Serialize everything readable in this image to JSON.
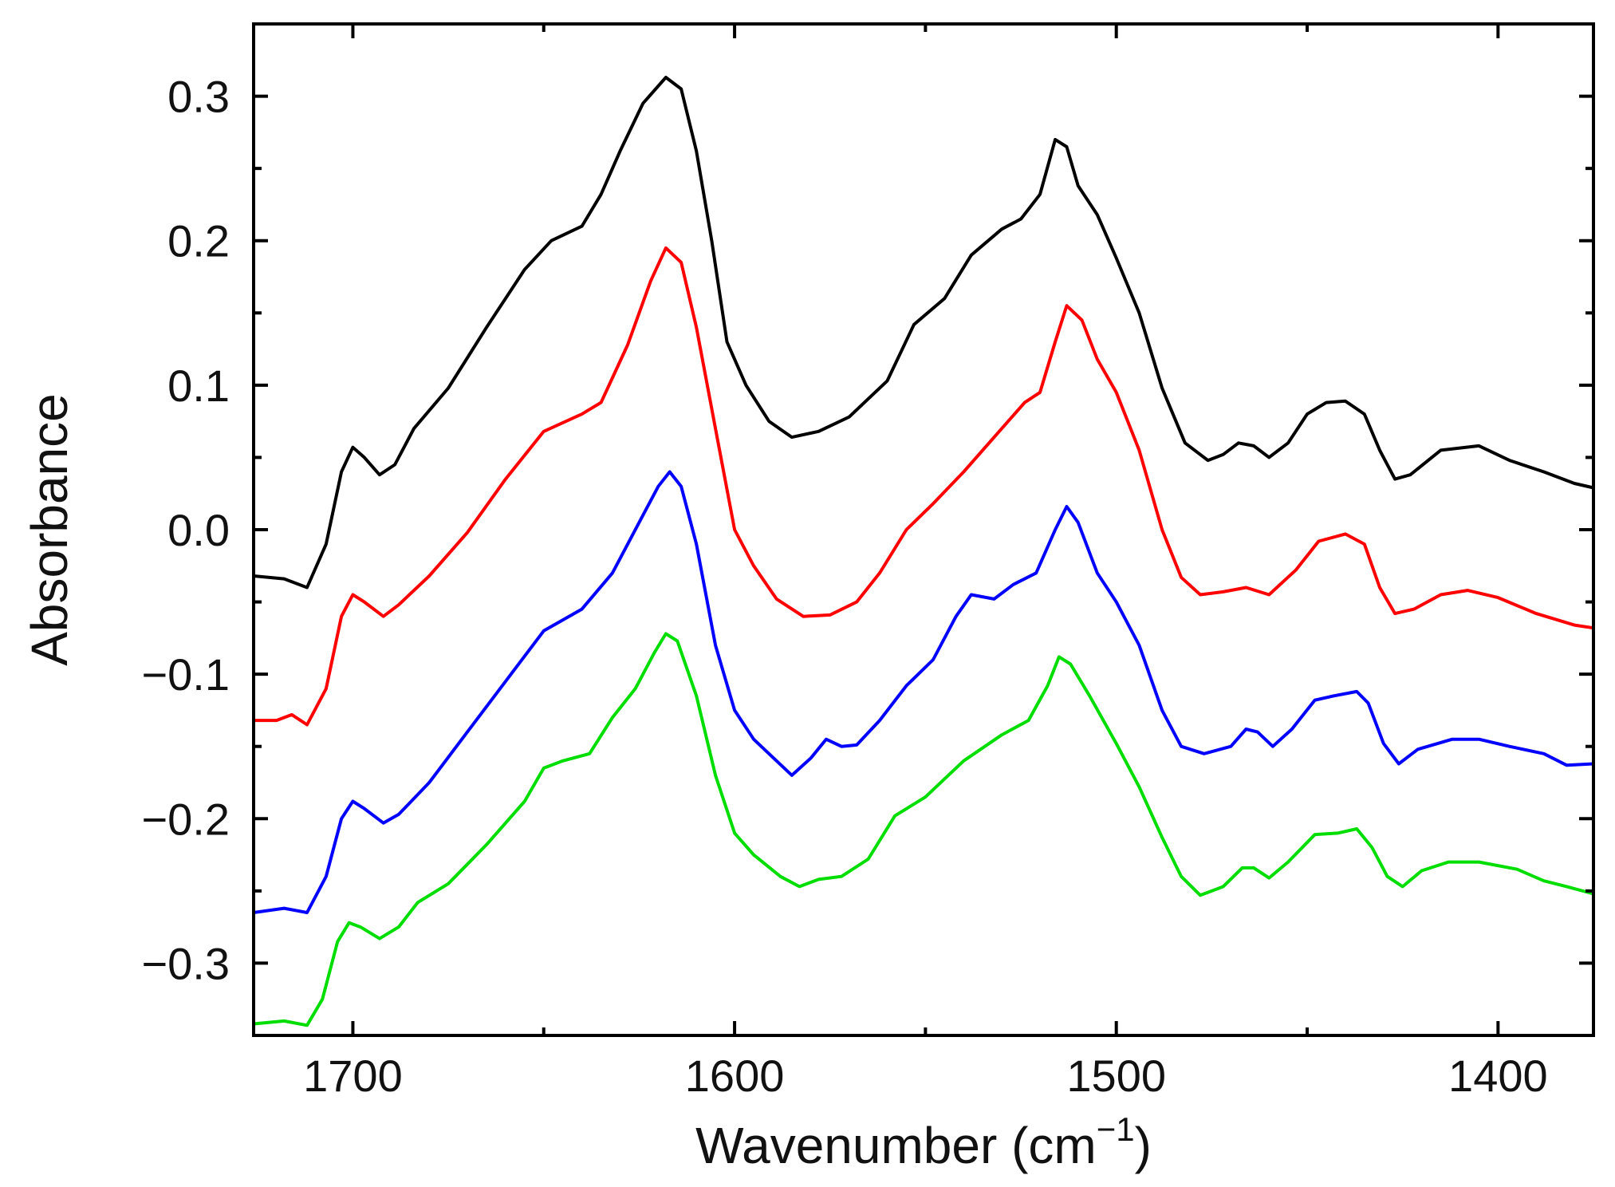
{
  "chart_data": {
    "type": "line",
    "title": "",
    "xlabel": "Wavenumber (cm",
    "xlabel_sup": "−1",
    "xlabel_close": ")",
    "ylabel": "Absorbance",
    "xlim": [
      1726,
      1375
    ],
    "ylim": [
      -0.35,
      0.35
    ],
    "grid": false,
    "legend": "none",
    "x_ticks": [
      1700,
      1600,
      1500,
      1400
    ],
    "x_tick_labels": [
      "1700",
      "1600",
      "1500",
      "1400"
    ],
    "y_ticks": [
      0.3,
      0.2,
      0.1,
      0.0,
      -0.1,
      -0.2,
      -0.3
    ],
    "y_tick_labels": [
      "0.3",
      "0.2",
      "0.1",
      "0.0",
      "−0.1",
      "−0.2",
      "−0.3"
    ],
    "series": [
      {
        "name": "black",
        "color": "#000000",
        "points": [
          [
            1726,
            -0.032
          ],
          [
            1718,
            -0.034
          ],
          [
            1712,
            -0.04
          ],
          [
            1707,
            -0.01
          ],
          [
            1703,
            0.04
          ],
          [
            1700,
            0.057
          ],
          [
            1697,
            0.05
          ],
          [
            1693,
            0.038
          ],
          [
            1689,
            0.045
          ],
          [
            1684,
            0.07
          ],
          [
            1675,
            0.098
          ],
          [
            1665,
            0.14
          ],
          [
            1655,
            0.18
          ],
          [
            1648,
            0.2
          ],
          [
            1640,
            0.21
          ],
          [
            1635,
            0.232
          ],
          [
            1630,
            0.262
          ],
          [
            1624,
            0.295
          ],
          [
            1618,
            0.313
          ],
          [
            1614,
            0.305
          ],
          [
            1610,
            0.262
          ],
          [
            1606,
            0.2
          ],
          [
            1602,
            0.13
          ],
          [
            1597,
            0.1
          ],
          [
            1591,
            0.075
          ],
          [
            1585,
            0.064
          ],
          [
            1578,
            0.068
          ],
          [
            1570,
            0.078
          ],
          [
            1560,
            0.103
          ],
          [
            1553,
            0.142
          ],
          [
            1545,
            0.16
          ],
          [
            1538,
            0.19
          ],
          [
            1530,
            0.208
          ],
          [
            1525,
            0.215
          ],
          [
            1520,
            0.232
          ],
          [
            1516,
            0.27
          ],
          [
            1513,
            0.265
          ],
          [
            1510,
            0.238
          ],
          [
            1505,
            0.218
          ],
          [
            1500,
            0.188
          ],
          [
            1494,
            0.15
          ],
          [
            1488,
            0.098
          ],
          [
            1482,
            0.06
          ],
          [
            1476,
            0.048
          ],
          [
            1472,
            0.052
          ],
          [
            1468,
            0.06
          ],
          [
            1464,
            0.058
          ],
          [
            1460,
            0.05
          ],
          [
            1455,
            0.06
          ],
          [
            1450,
            0.08
          ],
          [
            1445,
            0.088
          ],
          [
            1440,
            0.089
          ],
          [
            1435,
            0.08
          ],
          [
            1431,
            0.055
          ],
          [
            1427,
            0.035
          ],
          [
            1423,
            0.038
          ],
          [
            1415,
            0.055
          ],
          [
            1405,
            0.058
          ],
          [
            1397,
            0.048
          ],
          [
            1388,
            0.04
          ],
          [
            1380,
            0.032
          ],
          [
            1375,
            0.029
          ]
        ]
      },
      {
        "name": "red",
        "color": "#ff0000",
        "points": [
          [
            1726,
            -0.132
          ],
          [
            1720,
            -0.132
          ],
          [
            1716,
            -0.128
          ],
          [
            1712,
            -0.135
          ],
          [
            1707,
            -0.11
          ],
          [
            1703,
            -0.06
          ],
          [
            1700,
            -0.045
          ],
          [
            1697,
            -0.05
          ],
          [
            1692,
            -0.06
          ],
          [
            1688,
            -0.052
          ],
          [
            1680,
            -0.032
          ],
          [
            1670,
            -0.002
          ],
          [
            1660,
            0.035
          ],
          [
            1650,
            0.068
          ],
          [
            1640,
            0.08
          ],
          [
            1635,
            0.088
          ],
          [
            1628,
            0.128
          ],
          [
            1622,
            0.172
          ],
          [
            1618,
            0.195
          ],
          [
            1614,
            0.185
          ],
          [
            1610,
            0.14
          ],
          [
            1605,
            0.07
          ],
          [
            1600,
            0.0
          ],
          [
            1595,
            -0.025
          ],
          [
            1589,
            -0.048
          ],
          [
            1582,
            -0.06
          ],
          [
            1575,
            -0.059
          ],
          [
            1568,
            -0.05
          ],
          [
            1562,
            -0.03
          ],
          [
            1555,
            0.0
          ],
          [
            1548,
            0.018
          ],
          [
            1540,
            0.04
          ],
          [
            1530,
            0.07
          ],
          [
            1524,
            0.088
          ],
          [
            1520,
            0.095
          ],
          [
            1516,
            0.13
          ],
          [
            1513,
            0.155
          ],
          [
            1509,
            0.145
          ],
          [
            1505,
            0.118
          ],
          [
            1500,
            0.095
          ],
          [
            1494,
            0.055
          ],
          [
            1488,
            0.0
          ],
          [
            1483,
            -0.033
          ],
          [
            1478,
            -0.045
          ],
          [
            1472,
            -0.043
          ],
          [
            1466,
            -0.04
          ],
          [
            1460,
            -0.045
          ],
          [
            1453,
            -0.028
          ],
          [
            1447,
            -0.008
          ],
          [
            1440,
            -0.003
          ],
          [
            1435,
            -0.01
          ],
          [
            1431,
            -0.04
          ],
          [
            1427,
            -0.058
          ],
          [
            1422,
            -0.055
          ],
          [
            1415,
            -0.045
          ],
          [
            1408,
            -0.042
          ],
          [
            1400,
            -0.047
          ],
          [
            1390,
            -0.058
          ],
          [
            1380,
            -0.066
          ],
          [
            1375,
            -0.068
          ]
        ]
      },
      {
        "name": "blue",
        "color": "#0000ff",
        "points": [
          [
            1726,
            -0.265
          ],
          [
            1718,
            -0.262
          ],
          [
            1712,
            -0.265
          ],
          [
            1707,
            -0.24
          ],
          [
            1703,
            -0.2
          ],
          [
            1700,
            -0.188
          ],
          [
            1697,
            -0.193
          ],
          [
            1692,
            -0.203
          ],
          [
            1688,
            -0.197
          ],
          [
            1680,
            -0.175
          ],
          [
            1670,
            -0.14
          ],
          [
            1660,
            -0.105
          ],
          [
            1650,
            -0.07
          ],
          [
            1640,
            -0.055
          ],
          [
            1632,
            -0.03
          ],
          [
            1625,
            0.005
          ],
          [
            1620,
            0.03
          ],
          [
            1617,
            0.04
          ],
          [
            1614,
            0.03
          ],
          [
            1610,
            -0.01
          ],
          [
            1605,
            -0.08
          ],
          [
            1600,
            -0.125
          ],
          [
            1595,
            -0.145
          ],
          [
            1589,
            -0.16
          ],
          [
            1585,
            -0.17
          ],
          [
            1580,
            -0.158
          ],
          [
            1576,
            -0.145
          ],
          [
            1572,
            -0.15
          ],
          [
            1568,
            -0.149
          ],
          [
            1562,
            -0.132
          ],
          [
            1555,
            -0.108
          ],
          [
            1548,
            -0.09
          ],
          [
            1542,
            -0.06
          ],
          [
            1538,
            -0.045
          ],
          [
            1532,
            -0.048
          ],
          [
            1527,
            -0.038
          ],
          [
            1521,
            -0.03
          ],
          [
            1516,
            0.0
          ],
          [
            1513,
            0.016
          ],
          [
            1510,
            0.005
          ],
          [
            1505,
            -0.03
          ],
          [
            1500,
            -0.05
          ],
          [
            1494,
            -0.08
          ],
          [
            1488,
            -0.125
          ],
          [
            1483,
            -0.15
          ],
          [
            1477,
            -0.155
          ],
          [
            1470,
            -0.15
          ],
          [
            1466,
            -0.138
          ],
          [
            1463,
            -0.14
          ],
          [
            1459,
            -0.15
          ],
          [
            1454,
            -0.138
          ],
          [
            1448,
            -0.118
          ],
          [
            1443,
            -0.115
          ],
          [
            1437,
            -0.112
          ],
          [
            1434,
            -0.12
          ],
          [
            1430,
            -0.148
          ],
          [
            1426,
            -0.162
          ],
          [
            1421,
            -0.152
          ],
          [
            1412,
            -0.145
          ],
          [
            1405,
            -0.145
          ],
          [
            1397,
            -0.15
          ],
          [
            1388,
            -0.155
          ],
          [
            1382,
            -0.163
          ],
          [
            1375,
            -0.162
          ]
        ]
      },
      {
        "name": "green",
        "color": "#00dd00",
        "points": [
          [
            1726,
            -0.342
          ],
          [
            1718,
            -0.34
          ],
          [
            1712,
            -0.343
          ],
          [
            1708,
            -0.325
          ],
          [
            1704,
            -0.285
          ],
          [
            1701,
            -0.272
          ],
          [
            1698,
            -0.275
          ],
          [
            1693,
            -0.283
          ],
          [
            1688,
            -0.275
          ],
          [
            1683,
            -0.258
          ],
          [
            1675,
            -0.245
          ],
          [
            1665,
            -0.218
          ],
          [
            1655,
            -0.188
          ],
          [
            1650,
            -0.165
          ],
          [
            1645,
            -0.16
          ],
          [
            1638,
            -0.155
          ],
          [
            1632,
            -0.13
          ],
          [
            1626,
            -0.11
          ],
          [
            1621,
            -0.085
          ],
          [
            1618,
            -0.072
          ],
          [
            1615,
            -0.077
          ],
          [
            1610,
            -0.115
          ],
          [
            1605,
            -0.17
          ],
          [
            1600,
            -0.21
          ],
          [
            1595,
            -0.225
          ],
          [
            1588,
            -0.24
          ],
          [
            1583,
            -0.247
          ],
          [
            1578,
            -0.242
          ],
          [
            1572,
            -0.24
          ],
          [
            1565,
            -0.228
          ],
          [
            1558,
            -0.198
          ],
          [
            1550,
            -0.185
          ],
          [
            1540,
            -0.16
          ],
          [
            1530,
            -0.142
          ],
          [
            1523,
            -0.132
          ],
          [
            1518,
            -0.108
          ],
          [
            1515,
            -0.088
          ],
          [
            1512,
            -0.093
          ],
          [
            1507,
            -0.115
          ],
          [
            1500,
            -0.148
          ],
          [
            1494,
            -0.178
          ],
          [
            1488,
            -0.213
          ],
          [
            1483,
            -0.24
          ],
          [
            1478,
            -0.253
          ],
          [
            1472,
            -0.247
          ],
          [
            1467,
            -0.234
          ],
          [
            1464,
            -0.234
          ],
          [
            1460,
            -0.241
          ],
          [
            1455,
            -0.23
          ],
          [
            1448,
            -0.211
          ],
          [
            1442,
            -0.21
          ],
          [
            1437,
            -0.207
          ],
          [
            1433,
            -0.22
          ],
          [
            1429,
            -0.24
          ],
          [
            1425,
            -0.247
          ],
          [
            1420,
            -0.236
          ],
          [
            1413,
            -0.23
          ],
          [
            1405,
            -0.23
          ],
          [
            1395,
            -0.235
          ],
          [
            1388,
            -0.243
          ],
          [
            1382,
            -0.247
          ],
          [
            1375,
            -0.252
          ]
        ]
      }
    ]
  }
}
